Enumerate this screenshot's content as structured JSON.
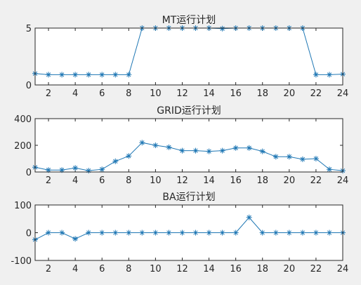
{
  "colors": {
    "series": "#1f77b4",
    "axes": "#262626",
    "background": "#f0f0f0",
    "plot": "#ffffff"
  },
  "chart_data": [
    {
      "type": "line",
      "title": "MT运行计划",
      "xlabel": "",
      "ylabel": "",
      "xlim": [
        1,
        24
      ],
      "ylim": [
        0,
        5
      ],
      "x_ticks": [
        2,
        4,
        6,
        8,
        10,
        12,
        14,
        16,
        18,
        20,
        22,
        24
      ],
      "y_ticks": [
        0,
        5
      ],
      "grid": false,
      "marker": "asterisk",
      "x": [
        1,
        2,
        3,
        4,
        5,
        6,
        7,
        8,
        9,
        10,
        11,
        12,
        13,
        14,
        15,
        16,
        17,
        18,
        19,
        20,
        21,
        22,
        23,
        24
      ],
      "series": [
        {
          "values": [
            1,
            0.9,
            0.9,
            0.9,
            0.9,
            0.9,
            0.9,
            0.9,
            5,
            5,
            5,
            5,
            5,
            5,
            4.95,
            5,
            5,
            5,
            5,
            5,
            5,
            0.9,
            0.9,
            0.95
          ]
        }
      ]
    },
    {
      "type": "line",
      "title": "GRID运行计划",
      "xlabel": "",
      "ylabel": "",
      "xlim": [
        1,
        24
      ],
      "ylim": [
        0,
        400
      ],
      "x_ticks": [
        2,
        4,
        6,
        8,
        10,
        12,
        14,
        16,
        18,
        20,
        22,
        24
      ],
      "y_ticks": [
        0,
        200,
        400
      ],
      "grid": false,
      "marker": "asterisk",
      "x": [
        1,
        2,
        3,
        4,
        5,
        6,
        7,
        8,
        9,
        10,
        11,
        12,
        13,
        14,
        15,
        16,
        17,
        18,
        19,
        20,
        21,
        22,
        23,
        24
      ],
      "series": [
        {
          "values": [
            35,
            15,
            15,
            30,
            10,
            20,
            80,
            120,
            220,
            200,
            185,
            160,
            160,
            155,
            160,
            180,
            180,
            155,
            115,
            115,
            95,
            100,
            20,
            10
          ]
        }
      ]
    },
    {
      "type": "line",
      "title": "BA运行计划",
      "xlabel": "",
      "ylabel": "",
      "xlim": [
        1,
        24
      ],
      "ylim": [
        -100,
        100
      ],
      "x_ticks": [
        2,
        4,
        6,
        8,
        10,
        12,
        14,
        16,
        18,
        20,
        22,
        24
      ],
      "y_ticks": [
        -100,
        0,
        100
      ],
      "grid": false,
      "marker": "asterisk",
      "x": [
        1,
        2,
        3,
        4,
        5,
        6,
        7,
        8,
        9,
        10,
        11,
        12,
        13,
        14,
        15,
        16,
        17,
        18,
        19,
        20,
        21,
        22,
        23,
        24
      ],
      "series": [
        {
          "values": [
            -25,
            0,
            0,
            -22,
            0,
            0,
            0,
            0,
            0,
            0,
            0,
            0,
            0,
            0,
            0,
            0,
            55,
            0,
            0,
            0,
            0,
            0,
            0,
            0
          ]
        }
      ]
    }
  ]
}
